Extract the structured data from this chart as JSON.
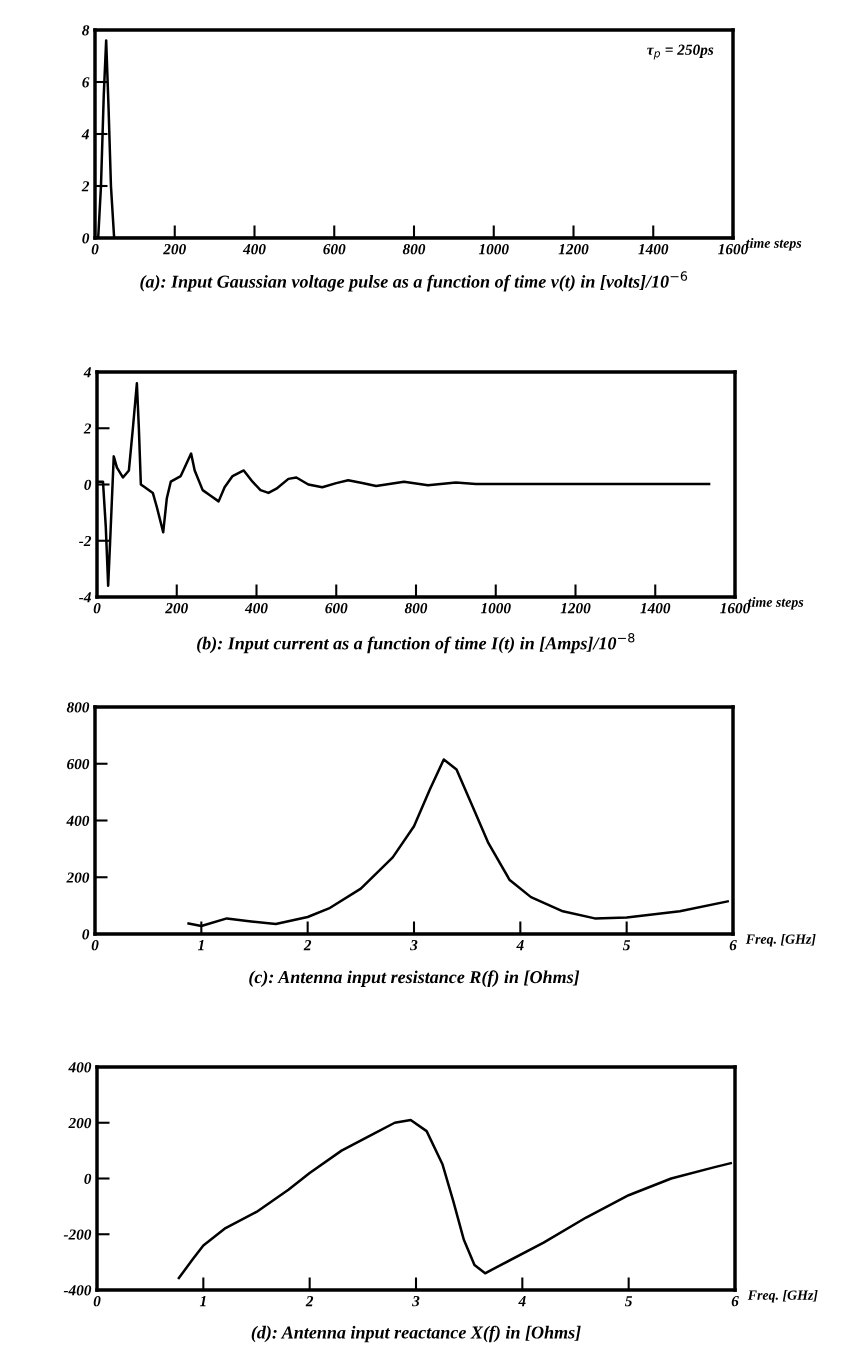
{
  "chart_data": [
    {
      "type": "line",
      "title": "(a): Input Gaussian voltage pulse as a function of time v(t) in [volts]/10$^{−6}$",
      "xlabel": "time steps",
      "xlim": [
        0,
        1600
      ],
      "ylim": [
        0,
        8
      ],
      "xticks": [
        0,
        200,
        400,
        600,
        800,
        1000,
        1200,
        1400,
        1600
      ],
      "yticks": [
        0,
        2,
        4,
        6,
        8
      ],
      "grid": false,
      "annotations": [
        "τ$_{p}$ = 250ps"
      ],
      "series": [
        {
          "color": "#000000",
          "x": [
            0,
            8,
            15,
            22,
            28,
            34,
            40,
            48,
            1600
          ],
          "values": [
            0,
            0,
            2,
            5.5,
            7.6,
            5,
            2,
            0,
            0
          ]
        }
      ]
    },
    {
      "type": "line",
      "title": "(b): Input current as a function of time I(t) in [Amps]/10$^{−8}$",
      "xlabel": "time steps",
      "xlim": [
        0,
        1600
      ],
      "ylim": [
        -4,
        4
      ],
      "xticks": [
        0,
        200,
        400,
        600,
        800,
        1000,
        1200,
        1400,
        1600
      ],
      "yticks": [
        -4,
        -2,
        0,
        2,
        4
      ],
      "grid": false,
      "series": [
        {
          "color": "#000000",
          "x": [
            0,
            15,
            22,
            28,
            33,
            42,
            50,
            65,
            80,
            90,
            100,
            105,
            110,
            120,
            140,
            150,
            166,
            175,
            185,
            210,
            236,
            245,
            265,
            285,
            305,
            320,
            340,
            368,
            390,
            410,
            430,
            450,
            480,
            500,
            530,
            565,
            600,
            630,
            665,
            700,
            770,
            830,
            900,
            950,
            1000,
            1535
          ],
          "values": [
            0.1,
            0.1,
            -1.5,
            -3.6,
            -2,
            1.0,
            0.6,
            0.25,
            0.5,
            2.0,
            3.6,
            2,
            0.0,
            -0.1,
            -0.3,
            -0.8,
            -1.7,
            -0.5,
            0.1,
            0.3,
            1.1,
            0.5,
            -0.2,
            -0.4,
            -0.6,
            -0.1,
            0.3,
            0.5,
            0.1,
            -0.2,
            -0.3,
            -0.15,
            0.2,
            0.25,
            0.0,
            -0.1,
            0.05,
            0.15,
            0.05,
            -0.05,
            0.1,
            -0.03,
            0.07,
            0.02,
            0.02,
            0.02
          ]
        }
      ]
    },
    {
      "type": "line",
      "title": "(c): Antenna input resistance R(f) in [Ohms]",
      "xlabel": "Freq. [GHz]",
      "xlim": [
        0,
        6
      ],
      "ylim": [
        0,
        800
      ],
      "xticks": [
        0,
        1,
        2,
        3,
        4,
        5,
        6
      ],
      "yticks": [
        0,
        200,
        400,
        600,
        800
      ],
      "grid": false,
      "series": [
        {
          "color": "#000000",
          "x": [
            0.88,
            1.0,
            1.24,
            1.45,
            1.7,
            2.0,
            2.2,
            2.5,
            2.8,
            3.0,
            3.15,
            3.28,
            3.4,
            3.55,
            3.7,
            3.9,
            4.1,
            4.4,
            4.7,
            5.0,
            5.5,
            5.95
          ],
          "values": [
            37,
            28,
            55,
            45,
            35,
            60,
            90,
            160,
            270,
            380,
            510,
            615,
            580,
            450,
            320,
            190,
            130,
            80,
            55,
            58,
            80,
            115
          ]
        }
      ]
    },
    {
      "type": "line",
      "title": "(d): Antenna input reactance X(f) in [Ohms]",
      "xlabel": "Freq. [GHz]",
      "xlim": [
        0,
        6
      ],
      "ylim": [
        -400,
        400
      ],
      "xticks": [
        0,
        1,
        2,
        3,
        4,
        5,
        6
      ],
      "yticks": [
        -400,
        -200,
        0,
        200,
        400
      ],
      "grid": false,
      "series": [
        {
          "color": "#000000",
          "x": [
            0.77,
            0.9,
            1.0,
            1.2,
            1.5,
            1.8,
            2.0,
            2.3,
            2.6,
            2.8,
            2.95,
            3.1,
            3.25,
            3.35,
            3.45,
            3.55,
            3.65,
            3.8,
            4.2,
            4.6,
            5.0,
            5.4,
            5.8,
            5.96
          ],
          "values": [
            -357,
            -290,
            -240,
            -180,
            -120,
            -40,
            20,
            100,
            160,
            200,
            210,
            170,
            50,
            -80,
            -220,
            -310,
            -340,
            -310,
            -230,
            -140,
            -60,
            0,
            40,
            55
          ]
        }
      ]
    }
  ]
}
